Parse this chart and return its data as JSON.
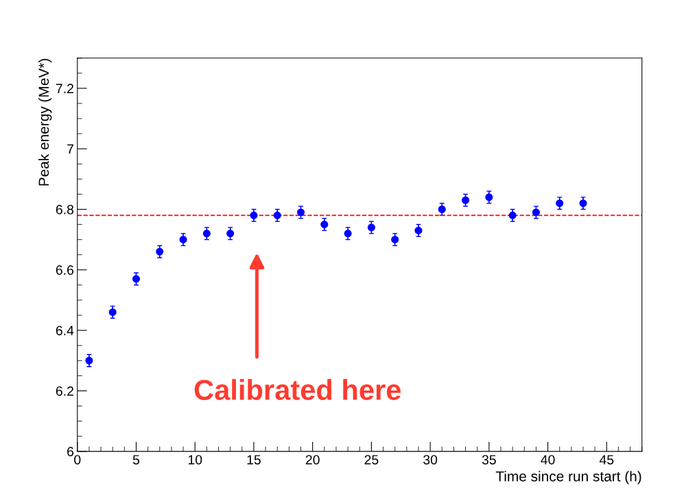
{
  "chart_data": {
    "type": "scatter",
    "xlabel": "Time since run start (h)",
    "ylabel": "Peak energy (MeV*)",
    "x": [
      1,
      3,
      5,
      7,
      9,
      11,
      13,
      15,
      17,
      19,
      21,
      23,
      25,
      27,
      29,
      31,
      33,
      35,
      37,
      39,
      41,
      43
    ],
    "series": [
      {
        "color": "#0000ff",
        "values": [
          6.3,
          6.46,
          6.57,
          6.66,
          6.7,
          6.72,
          6.72,
          6.78,
          6.78,
          6.79,
          6.75,
          6.72,
          6.74,
          6.7,
          6.73,
          6.8,
          6.83,
          6.84,
          6.78,
          6.79,
          6.82,
          6.82
        ],
        "errors": [
          0.02,
          0.02,
          0.02,
          0.02,
          0.02,
          0.02,
          0.02,
          0.02,
          0.02,
          0.02,
          0.02,
          0.02,
          0.02,
          0.02,
          0.02,
          0.02,
          0.02,
          0.02,
          0.02,
          0.02,
          0.02,
          0.02
        ]
      }
    ],
    "marker": "circle",
    "xlim": [
      0,
      48
    ],
    "xticks": [
      0,
      5,
      10,
      15,
      20,
      25,
      30,
      35,
      40,
      45
    ],
    "ylim": [
      6,
      7.3
    ],
    "yticks": [
      6,
      6.2,
      6.4,
      6.6,
      6.8,
      7,
      7.2
    ],
    "ref_lines": [
      {
        "axis": "y",
        "value": 6.78,
        "color": "#ff0000",
        "line_style": "dashed"
      }
    ],
    "annotations": [
      "Calibrated here"
    ],
    "grid": false,
    "legend": false
  }
}
